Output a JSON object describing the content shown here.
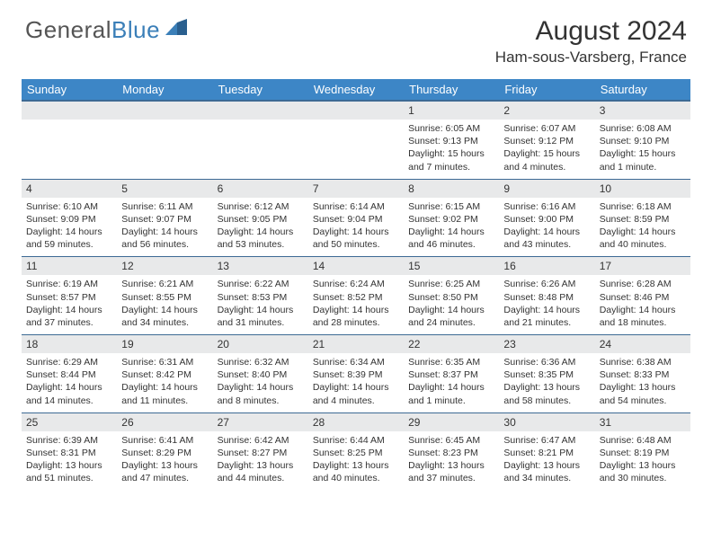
{
  "brand": {
    "name_a": "General",
    "name_b": "Blue"
  },
  "title": "August 2024",
  "location": "Ham-sous-Varsberg, France",
  "colors": {
    "header_bg": "#3d86c6",
    "header_text": "#ffffff",
    "daynum_bg": "#e8e9ea",
    "border": "#2e5a86",
    "logo_gray": "#6b6b6b",
    "logo_blue": "#3b7fb8"
  },
  "dow": [
    "Sunday",
    "Monday",
    "Tuesday",
    "Wednesday",
    "Thursday",
    "Friday",
    "Saturday"
  ],
  "weeks": [
    [
      {
        "n": "",
        "sr": "",
        "ss": "",
        "dl": ""
      },
      {
        "n": "",
        "sr": "",
        "ss": "",
        "dl": ""
      },
      {
        "n": "",
        "sr": "",
        "ss": "",
        "dl": ""
      },
      {
        "n": "",
        "sr": "",
        "ss": "",
        "dl": ""
      },
      {
        "n": "1",
        "sr": "Sunrise: 6:05 AM",
        "ss": "Sunset: 9:13 PM",
        "dl": "Daylight: 15 hours and 7 minutes."
      },
      {
        "n": "2",
        "sr": "Sunrise: 6:07 AM",
        "ss": "Sunset: 9:12 PM",
        "dl": "Daylight: 15 hours and 4 minutes."
      },
      {
        "n": "3",
        "sr": "Sunrise: 6:08 AM",
        "ss": "Sunset: 9:10 PM",
        "dl": "Daylight: 15 hours and 1 minute."
      }
    ],
    [
      {
        "n": "4",
        "sr": "Sunrise: 6:10 AM",
        "ss": "Sunset: 9:09 PM",
        "dl": "Daylight: 14 hours and 59 minutes."
      },
      {
        "n": "5",
        "sr": "Sunrise: 6:11 AM",
        "ss": "Sunset: 9:07 PM",
        "dl": "Daylight: 14 hours and 56 minutes."
      },
      {
        "n": "6",
        "sr": "Sunrise: 6:12 AM",
        "ss": "Sunset: 9:05 PM",
        "dl": "Daylight: 14 hours and 53 minutes."
      },
      {
        "n": "7",
        "sr": "Sunrise: 6:14 AM",
        "ss": "Sunset: 9:04 PM",
        "dl": "Daylight: 14 hours and 50 minutes."
      },
      {
        "n": "8",
        "sr": "Sunrise: 6:15 AM",
        "ss": "Sunset: 9:02 PM",
        "dl": "Daylight: 14 hours and 46 minutes."
      },
      {
        "n": "9",
        "sr": "Sunrise: 6:16 AM",
        "ss": "Sunset: 9:00 PM",
        "dl": "Daylight: 14 hours and 43 minutes."
      },
      {
        "n": "10",
        "sr": "Sunrise: 6:18 AM",
        "ss": "Sunset: 8:59 PM",
        "dl": "Daylight: 14 hours and 40 minutes."
      }
    ],
    [
      {
        "n": "11",
        "sr": "Sunrise: 6:19 AM",
        "ss": "Sunset: 8:57 PM",
        "dl": "Daylight: 14 hours and 37 minutes."
      },
      {
        "n": "12",
        "sr": "Sunrise: 6:21 AM",
        "ss": "Sunset: 8:55 PM",
        "dl": "Daylight: 14 hours and 34 minutes."
      },
      {
        "n": "13",
        "sr": "Sunrise: 6:22 AM",
        "ss": "Sunset: 8:53 PM",
        "dl": "Daylight: 14 hours and 31 minutes."
      },
      {
        "n": "14",
        "sr": "Sunrise: 6:24 AM",
        "ss": "Sunset: 8:52 PM",
        "dl": "Daylight: 14 hours and 28 minutes."
      },
      {
        "n": "15",
        "sr": "Sunrise: 6:25 AM",
        "ss": "Sunset: 8:50 PM",
        "dl": "Daylight: 14 hours and 24 minutes."
      },
      {
        "n": "16",
        "sr": "Sunrise: 6:26 AM",
        "ss": "Sunset: 8:48 PM",
        "dl": "Daylight: 14 hours and 21 minutes."
      },
      {
        "n": "17",
        "sr": "Sunrise: 6:28 AM",
        "ss": "Sunset: 8:46 PM",
        "dl": "Daylight: 14 hours and 18 minutes."
      }
    ],
    [
      {
        "n": "18",
        "sr": "Sunrise: 6:29 AM",
        "ss": "Sunset: 8:44 PM",
        "dl": "Daylight: 14 hours and 14 minutes."
      },
      {
        "n": "19",
        "sr": "Sunrise: 6:31 AM",
        "ss": "Sunset: 8:42 PM",
        "dl": "Daylight: 14 hours and 11 minutes."
      },
      {
        "n": "20",
        "sr": "Sunrise: 6:32 AM",
        "ss": "Sunset: 8:40 PM",
        "dl": "Daylight: 14 hours and 8 minutes."
      },
      {
        "n": "21",
        "sr": "Sunrise: 6:34 AM",
        "ss": "Sunset: 8:39 PM",
        "dl": "Daylight: 14 hours and 4 minutes."
      },
      {
        "n": "22",
        "sr": "Sunrise: 6:35 AM",
        "ss": "Sunset: 8:37 PM",
        "dl": "Daylight: 14 hours and 1 minute."
      },
      {
        "n": "23",
        "sr": "Sunrise: 6:36 AM",
        "ss": "Sunset: 8:35 PM",
        "dl": "Daylight: 13 hours and 58 minutes."
      },
      {
        "n": "24",
        "sr": "Sunrise: 6:38 AM",
        "ss": "Sunset: 8:33 PM",
        "dl": "Daylight: 13 hours and 54 minutes."
      }
    ],
    [
      {
        "n": "25",
        "sr": "Sunrise: 6:39 AM",
        "ss": "Sunset: 8:31 PM",
        "dl": "Daylight: 13 hours and 51 minutes."
      },
      {
        "n": "26",
        "sr": "Sunrise: 6:41 AM",
        "ss": "Sunset: 8:29 PM",
        "dl": "Daylight: 13 hours and 47 minutes."
      },
      {
        "n": "27",
        "sr": "Sunrise: 6:42 AM",
        "ss": "Sunset: 8:27 PM",
        "dl": "Daylight: 13 hours and 44 minutes."
      },
      {
        "n": "28",
        "sr": "Sunrise: 6:44 AM",
        "ss": "Sunset: 8:25 PM",
        "dl": "Daylight: 13 hours and 40 minutes."
      },
      {
        "n": "29",
        "sr": "Sunrise: 6:45 AM",
        "ss": "Sunset: 8:23 PM",
        "dl": "Daylight: 13 hours and 37 minutes."
      },
      {
        "n": "30",
        "sr": "Sunrise: 6:47 AM",
        "ss": "Sunset: 8:21 PM",
        "dl": "Daylight: 13 hours and 34 minutes."
      },
      {
        "n": "31",
        "sr": "Sunrise: 6:48 AM",
        "ss": "Sunset: 8:19 PM",
        "dl": "Daylight: 13 hours and 30 minutes."
      }
    ]
  ]
}
